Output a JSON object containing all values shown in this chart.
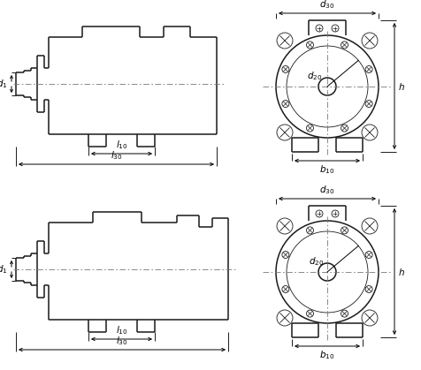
{
  "bg_color": "#ffffff",
  "lw_main": 1.1,
  "lw_thin": 0.6,
  "lw_dim": 0.7
}
